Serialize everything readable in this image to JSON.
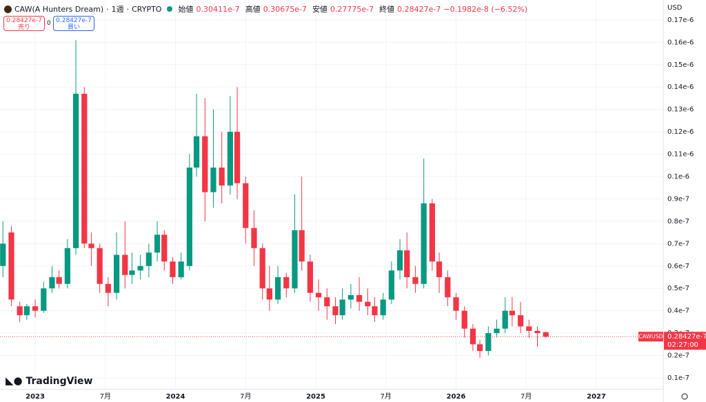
{
  "header": {
    "symbol": "CAW(A Hunters Dream)",
    "interval": "1週",
    "exchange": "CRYPTO",
    "open_label": "始値",
    "open": "0.30411e-7",
    "high_label": "高値",
    "high": "0.30675e-7",
    "low_label": "安値",
    "low": "0.27775e-7",
    "close_label": "終値",
    "close": "0.28427e-7",
    "change": "−0.1982e-8 (−6.52%)"
  },
  "trade": {
    "sell_price": "0.28427e-7",
    "sell_label": "売り",
    "spread": "0",
    "buy_price": "0.28427e-7",
    "buy_label": "買い"
  },
  "currency": "USD",
  "logo": "TradingView",
  "price_tag": {
    "symbol": "CAWUSD",
    "price": "0.28427e-7",
    "countdown": "02:27:00"
  },
  "chart_data": {
    "type": "candlestick",
    "up_color": "#089981",
    "down_color": "#f23645",
    "grid": true,
    "xlim": [
      2022.749,
      2027.477
    ],
    "ylim": [
      5.07e-09,
      1.789e-07
    ],
    "xticks": [
      2023,
      {
        "value": 2023.5,
        "label": "7月"
      },
      2024,
      {
        "value": 2024.5,
        "label": "7月"
      },
      2025,
      {
        "value": 2025.5,
        "label": "7月"
      },
      2026,
      {
        "value": 2026.5,
        "label": "7月"
      },
      2027
    ],
    "yticks": [
      {
        "value": 1e-08,
        "label": "0.1e-7"
      },
      {
        "value": 2e-08,
        "label": "0.2e-7"
      },
      {
        "value": 3e-08,
        "label": "0.3e-7"
      },
      {
        "value": 4e-08,
        "label": "0.4e-7"
      },
      {
        "value": 5e-08,
        "label": "0.5e-7"
      },
      {
        "value": 6e-08,
        "label": "0.6e-7"
      },
      {
        "value": 7e-08,
        "label": "0.7e-7"
      },
      {
        "value": 8e-08,
        "label": "0.8e-7"
      },
      {
        "value": 9e-08,
        "label": "0.9e-7"
      },
      {
        "value": 1e-07,
        "label": "0.1e-6"
      },
      {
        "value": 1.1e-07,
        "label": "0.11e-6"
      },
      {
        "value": 1.2e-07,
        "label": "0.12e-6"
      },
      {
        "value": 1.3e-07,
        "label": "0.13e-6"
      },
      {
        "value": 1.4e-07,
        "label": "0.14e-6"
      },
      {
        "value": 1.5e-07,
        "label": "0.15e-6"
      },
      {
        "value": 1.6e-07,
        "label": "0.16e-6"
      },
      {
        "value": 1.7e-07,
        "label": "0.17e-6"
      }
    ],
    "x": [
      2022.77,
      2022.83,
      2022.89,
      2022.94,
      2023.0,
      2023.06,
      2023.12,
      2023.17,
      2023.23,
      2023.29,
      2023.35,
      2023.4,
      2023.46,
      2023.52,
      2023.58,
      2023.64,
      2023.69,
      2023.75,
      2023.81,
      2023.87,
      2023.92,
      2023.98,
      2024.04,
      2024.1,
      2024.15,
      2024.21,
      2024.27,
      2024.33,
      2024.39,
      2024.44,
      2024.5,
      2024.56,
      2024.62,
      2024.67,
      2024.73,
      2024.79,
      2024.85,
      2024.9,
      2024.96,
      2025.02,
      2025.08,
      2025.14,
      2025.19,
      2025.25,
      2025.31,
      2025.37,
      2025.42,
      2025.48,
      2025.54,
      2025.6,
      2025.65,
      2025.71,
      2025.77,
      2025.83,
      2025.88,
      2025.94,
      2026.0,
      2026.06,
      2026.12,
      2026.17,
      2026.23,
      2026.29,
      2026.35,
      2026.4,
      2026.46,
      2026.52,
      2026.58,
      2026.64
    ],
    "open": [
      6e-08,
      7.5e-08,
      4.2e-08,
      3.8e-08,
      4.2e-08,
      4e-08,
      5e-08,
      5.5e-08,
      5.2e-08,
      6.8e-08,
      1.37e-07,
      7e-08,
      6.8e-08,
      5.2e-08,
      4.8e-08,
      6.5e-08,
      5.6e-08,
      5.8e-08,
      6e-08,
      6.6e-08,
      7.4e-08,
      6.2e-08,
      5.5e-08,
      6e-08,
      1.04e-07,
      1.18e-07,
      9.3e-08,
      1.04e-07,
      9.6e-08,
      1.2e-07,
      9.7e-08,
      7.7e-08,
      6.8e-08,
      5e-08,
      4.5e-08,
      5.5e-08,
      5e-08,
      7.6e-08,
      6.2e-08,
      4.8e-08,
      4.6e-08,
      4.2e-08,
      3.8e-08,
      4.5e-08,
      4.7e-08,
      4.4e-08,
      4.2e-08,
      3.8e-08,
      4.5e-08,
      5.8e-08,
      6.7e-08,
      5.5e-08,
      5.2e-08,
      8.8e-08,
      6.2e-08,
      5.5e-08,
      4.6e-08,
      4e-08,
      3.2e-08,
      2.5e-08,
      2.2e-08,
      3e-08,
      3.2e-08,
      4e-08,
      3.8e-08,
      3.3e-08,
      3.1e-08,
      3.0411e-08
    ],
    "high": [
      8e-08,
      7.8e-08,
      4.4e-08,
      4.3e-08,
      4.5e-08,
      5.3e-08,
      6e-08,
      5.8e-08,
      7.2e-08,
      1.61e-07,
      1.4e-07,
      7.5e-08,
      7e-08,
      5.5e-08,
      7.5e-08,
      8e-08,
      6.6e-08,
      6.5e-08,
      7e-08,
      8e-08,
      7.6e-08,
      6.4e-08,
      6.6e-08,
      1.1e-07,
      1.37e-07,
      1.35e-07,
      1.3e-07,
      1.2e-07,
      1.36e-07,
      1.4e-07,
      1e-07,
      8.5e-08,
      7e-08,
      6e-08,
      6e-08,
      5.7e-08,
      9.2e-08,
      1e-07,
      6.5e-08,
      5.4e-08,
      5e-08,
      4.6e-08,
      5e-08,
      5.2e-08,
      5.5e-08,
      5e-08,
      4.6e-08,
      4.8e-08,
      6.2e-08,
      7.2e-08,
      7.5e-08,
      6e-08,
      1.08e-07,
      9e-08,
      6.6e-08,
      5.8e-08,
      4.8e-08,
      4.2e-08,
      3.4e-08,
      2.7e-08,
      3.3e-08,
      3.6e-08,
      4.6e-08,
      4.6e-08,
      4.4e-08,
      3.6e-08,
      3.3e-08,
      3.0675e-08
    ],
    "low": [
      5.5e-08,
      4.2e-08,
      3.5e-08,
      3.6e-08,
      3.7e-08,
      3.9e-08,
      4.8e-08,
      5e-08,
      5e-08,
      6.5e-08,
      6.8e-08,
      6e-08,
      4.8e-08,
      4.2e-08,
      4.5e-08,
      5e-08,
      5.2e-08,
      5.4e-08,
      5.5e-08,
      6.2e-08,
      5.8e-08,
      5.2e-08,
      5.4e-08,
      5.8e-08,
      1e-07,
      8e-08,
      8.6e-08,
      8.8e-08,
      9.2e-08,
      9e-08,
      7e-08,
      6e-08,
      4.5e-08,
      4e-08,
      4.3e-08,
      4.6e-08,
      4.8e-08,
      5.8e-08,
      4.4e-08,
      4e-08,
      3.6e-08,
      3.4e-08,
      3.6e-08,
      4.1e-08,
      4e-08,
      3.8e-08,
      3.5e-08,
      3.6e-08,
      4.3e-08,
      5.4e-08,
      5e-08,
      4.8e-08,
      5e-08,
      5.8e-08,
      4.8e-08,
      4.2e-08,
      3.6e-08,
      2.8e-08,
      2.2e-08,
      1.9e-08,
      2e-08,
      2.8e-08,
      3e-08,
      3.3e-08,
      3e-08,
      2.8e-08,
      2.4e-08,
      2.7775e-08
    ],
    "close": [
      7e-08,
      4.5e-08,
      3.8e-08,
      4.2e-08,
      4e-08,
      5e-08,
      5.5e-08,
      5.2e-08,
      6.8e-08,
      1.37e-07,
      7e-08,
      6.8e-08,
      5.2e-08,
      4.8e-08,
      6.5e-08,
      5.6e-08,
      5.8e-08,
      6e-08,
      6.6e-08,
      7.4e-08,
      6.2e-08,
      5.5e-08,
      6.2e-08,
      1.04e-07,
      1.18e-07,
      9.3e-08,
      1.04e-07,
      9.6e-08,
      1.2e-07,
      9.7e-08,
      7.7e-08,
      6.8e-08,
      5e-08,
      4.5e-08,
      5.5e-08,
      5e-08,
      7.6e-08,
      6.2e-08,
      4.8e-08,
      4.6e-08,
      4.2e-08,
      3.8e-08,
      4.5e-08,
      4.7e-08,
      4.4e-08,
      4.2e-08,
      3.8e-08,
      4.5e-08,
      5.8e-08,
      6.7e-08,
      5.5e-08,
      5.2e-08,
      8.8e-08,
      6.2e-08,
      5.5e-08,
      4.6e-08,
      4e-08,
      3.2e-08,
      2.5e-08,
      2.2e-08,
      3e-08,
      3.2e-08,
      4e-08,
      3.8e-08,
      3.3e-08,
      3.1e-08,
      3e-08,
      2.8427e-08
    ]
  }
}
